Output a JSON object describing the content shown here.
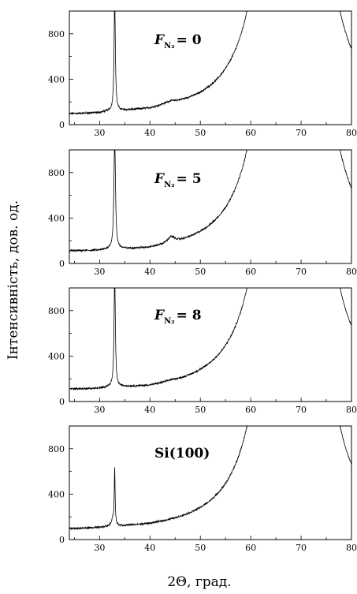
{
  "ylabel": "Інтенсивність, дов. од.",
  "xlabel": "2Θ, град.",
  "xticks": [
    "30",
    "40",
    "50",
    "60",
    "70",
    "80"
  ],
  "yticks": [
    "0",
    "400",
    "800"
  ],
  "chart_data": [
    {
      "type": "line",
      "label": {
        "main": "F",
        "sub": "N₂",
        "rest": "= 0"
      },
      "xlim": [
        24,
        80
      ],
      "ylim": [
        0,
        1000
      ],
      "baseline": [
        [
          24,
          55
        ],
        [
          30,
          50
        ],
        [
          32,
          58
        ],
        [
          40,
          45
        ],
        [
          44,
          55
        ],
        [
          50,
          42
        ],
        [
          55,
          40
        ],
        [
          60,
          42
        ],
        [
          80,
          40
        ]
      ],
      "peaks": [
        {
          "x": 33.0,
          "height": 1000,
          "width": 0.15
        },
        {
          "x": 44.0,
          "height": 15,
          "width": 1.5
        },
        {
          "x": 61.7,
          "height": 880,
          "width": 0.1
        },
        {
          "x": 68.5,
          "height": 35000,
          "width": 1.55
        }
      ]
    },
    {
      "type": "line",
      "label": {
        "main": "F",
        "sub": "N₂",
        "rest": "= 5"
      },
      "xlim": [
        24,
        80
      ],
      "ylim": [
        0,
        1000
      ],
      "baseline": [
        [
          24,
          70
        ],
        [
          30,
          60
        ],
        [
          32,
          65
        ],
        [
          40,
          42
        ],
        [
          50,
          40
        ],
        [
          55,
          40
        ],
        [
          60,
          45
        ],
        [
          80,
          40
        ]
      ],
      "peaks": [
        {
          "x": 33.0,
          "height": 1000,
          "width": 0.18
        },
        {
          "x": 44.2,
          "height": 55,
          "width": 0.9
        },
        {
          "x": 61.7,
          "height": 730,
          "width": 0.1
        },
        {
          "x": 68.5,
          "height": 35000,
          "width": 1.55
        }
      ]
    },
    {
      "type": "line",
      "label": {
        "main": "F",
        "sub": "N₂",
        "rest": "= 8"
      },
      "xlim": [
        24,
        80
      ],
      "ylim": [
        0,
        1000
      ],
      "baseline": [
        [
          24,
          70
        ],
        [
          30,
          60
        ],
        [
          32,
          70
        ],
        [
          40,
          42
        ],
        [
          50,
          40
        ],
        [
          55,
          40
        ],
        [
          60,
          45
        ],
        [
          80,
          40
        ]
      ],
      "peaks": [
        {
          "x": 33.0,
          "height": 1000,
          "width": 0.15
        },
        {
          "x": 44.0,
          "height": 10,
          "width": 1.5
        },
        {
          "x": 61.7,
          "height": 760,
          "width": 0.1
        },
        {
          "x": 68.5,
          "height": 35000,
          "width": 1.55
        }
      ]
    },
    {
      "type": "line",
      "label": {
        "main": "Si(100)",
        "sub": "",
        "rest": ""
      },
      "xlim": [
        24,
        80
      ],
      "ylim": [
        0,
        1000
      ],
      "baseline": [
        [
          24,
          55
        ],
        [
          30,
          50
        ],
        [
          32,
          55
        ],
        [
          40,
          42
        ],
        [
          50,
          40
        ],
        [
          55,
          40
        ],
        [
          60,
          42
        ],
        [
          80,
          40
        ]
      ],
      "peaks": [
        {
          "x": 32.6,
          "height": 60,
          "width": 0.3
        },
        {
          "x": 33.0,
          "height": 490,
          "width": 0.1
        },
        {
          "x": 61.7,
          "height": 880,
          "width": 0.1
        },
        {
          "x": 68.5,
          "height": 35000,
          "width": 1.55
        }
      ]
    }
  ]
}
